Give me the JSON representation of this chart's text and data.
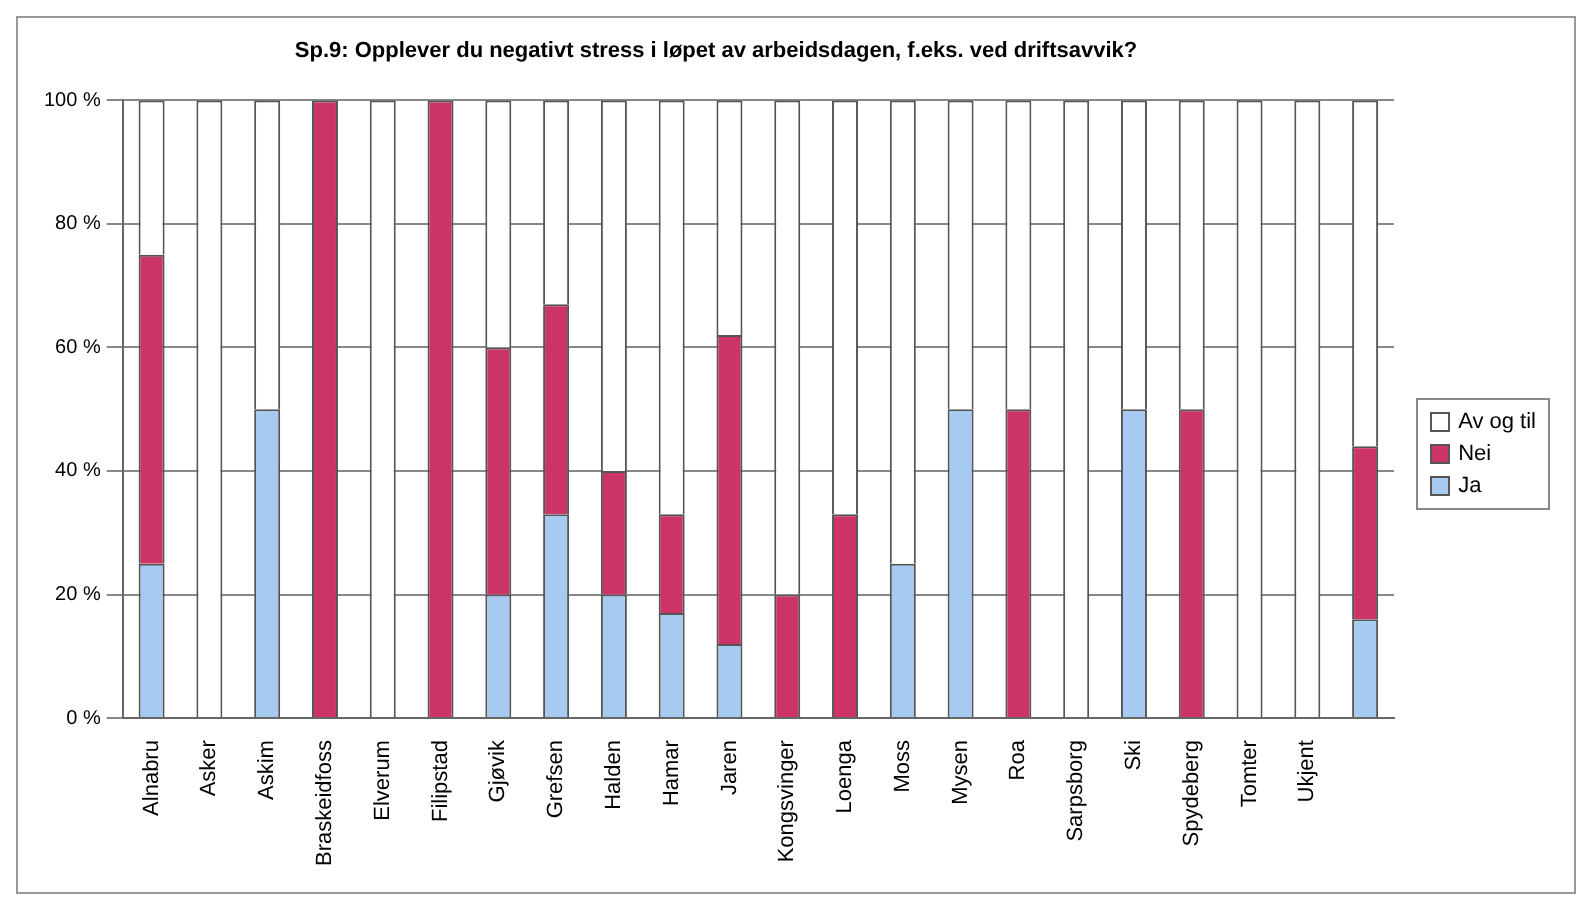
{
  "chart_data": {
    "type": "bar",
    "title": "Sp.9: Opplever du negativt stress i løpet av arbeidsdagen, f.eks. ved driftsavvik?",
    "categories": [
      "Alnabru",
      "Asker",
      "Askim",
      "Braskeidfoss",
      "Elverum",
      "Filipstad",
      "Gjøvik",
      "Grefsen",
      "Halden",
      "Hamar",
      "Jaren",
      "Kongsvinger",
      "Loenga",
      "Moss",
      "Mysen",
      "Roa",
      "Sarpsborg",
      "Ski",
      "Spydeberg",
      "Tomter",
      "Ukjent",
      null
    ],
    "stacked": true,
    "series": [
      {
        "name": "Ja",
        "color": "#a6caf0",
        "values": [
          25,
          0,
          50,
          0,
          0,
          0,
          20,
          33,
          20,
          17,
          12,
          0,
          0,
          25,
          50,
          0,
          0,
          50,
          0,
          0,
          0,
          16
        ]
      },
      {
        "name": "Nei",
        "color": "#cc3366",
        "values": [
          50,
          0,
          0,
          100,
          0,
          100,
          40,
          34,
          20,
          16,
          50,
          20,
          33,
          0,
          0,
          50,
          0,
          0,
          50,
          0,
          0,
          28
        ]
      },
      {
        "name": "Av og til",
        "color": "#ffffff",
        "values": [
          25,
          100,
          50,
          0,
          100,
          0,
          40,
          33,
          60,
          67,
          38,
          80,
          67,
          75,
          50,
          50,
          100,
          50,
          50,
          100,
          100,
          56
        ]
      }
    ],
    "ylim": [
      0,
      100
    ],
    "yticks": [
      {
        "value": 0,
        "label": "0 %"
      },
      {
        "value": 20,
        "label": "20 %"
      },
      {
        "value": 40,
        "label": "40 %"
      },
      {
        "value": 60,
        "label": "60 %"
      },
      {
        "value": 80,
        "label": "80 %"
      },
      {
        "value": 100,
        "label": "100 %"
      }
    ],
    "grid": "y",
    "legend": "right"
  }
}
